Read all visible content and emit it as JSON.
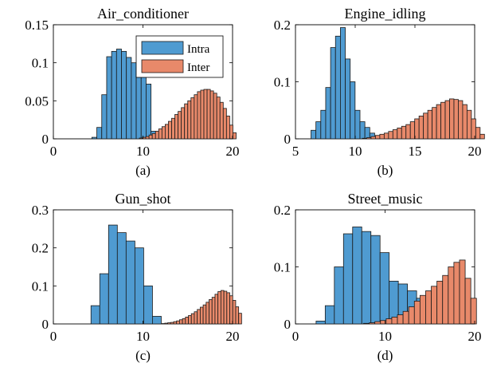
{
  "legend": {
    "entries": [
      "Intra",
      "Inter"
    ],
    "placement": "top-right of panel (a)"
  },
  "colors": {
    "intra": "#4f9bd1",
    "inter": "#e8896a",
    "edge": "#1a1a1a"
  },
  "chart_data": [
    {
      "type": "bar",
      "title": "Air_conditioner",
      "caption": "(a)",
      "xlim": [
        0,
        20
      ],
      "ylim": [
        0,
        0.15
      ],
      "xticks": [
        0,
        10,
        20
      ],
      "yticks": [
        0,
        0.05,
        0.1,
        0.15
      ],
      "xtick_labels": [
        "0",
        "10",
        "20"
      ],
      "ytick_labels": [
        "0",
        "0.05",
        "0.1",
        "0.15"
      ],
      "grid": false,
      "series": [
        {
          "name": "Intra",
          "bin_start": 4.3,
          "bin_width": 0.55,
          "values": [
            0.002,
            0.015,
            0.058,
            0.108,
            0.115,
            0.118,
            0.115,
            0.107,
            0.1,
            0.094,
            0.094,
            0.072,
            0.01
          ]
        },
        {
          "name": "Inter",
          "bin_start": 9.6,
          "bin_width": 0.36,
          "values": [
            0.001,
            0.002,
            0.003,
            0.005,
            0.007,
            0.01,
            0.013,
            0.016,
            0.019,
            0.023,
            0.027,
            0.032,
            0.036,
            0.041,
            0.046,
            0.05,
            0.054,
            0.058,
            0.062,
            0.064,
            0.065,
            0.065,
            0.063,
            0.06,
            0.055,
            0.048,
            0.04,
            0.03,
            0.018,
            0.008
          ]
        }
      ]
    },
    {
      "type": "bar",
      "title": "Engine_idling",
      "caption": "(b)",
      "xlim": [
        5,
        20
      ],
      "ylim": [
        0,
        0.2
      ],
      "xticks": [
        5,
        10,
        15,
        20
      ],
      "yticks": [
        0,
        0.1,
        0.2
      ],
      "xtick_labels": [
        "5",
        "10",
        "15",
        "20"
      ],
      "ytick_labels": [
        "0",
        "0.1",
        "0.2"
      ],
      "grid": false,
      "series": [
        {
          "name": "Intra",
          "bin_start": 6.3,
          "bin_width": 0.41,
          "values": [
            0.015,
            0.03,
            0.05,
            0.09,
            0.16,
            0.18,
            0.195,
            0.14,
            0.1,
            0.05,
            0.03,
            0.02,
            0.01
          ]
        },
        {
          "name": "Inter",
          "bin_start": 10.6,
          "bin_width": 0.365,
          "values": [
            0.001,
            0.002,
            0.004,
            0.006,
            0.008,
            0.01,
            0.013,
            0.016,
            0.019,
            0.022,
            0.025,
            0.03,
            0.035,
            0.04,
            0.045,
            0.05,
            0.055,
            0.06,
            0.064,
            0.067,
            0.07,
            0.069,
            0.067,
            0.06,
            0.05,
            0.035,
            0.02,
            0.008
          ]
        }
      ]
    },
    {
      "type": "bar",
      "title": "Gun_shot",
      "caption": "(c)",
      "xlim": [
        0,
        20
      ],
      "ylim": [
        0,
        0.3
      ],
      "xticks": [
        0,
        10,
        20
      ],
      "yticks": [
        0,
        0.1,
        0.2,
        0.3
      ],
      "xtick_labels": [
        "0",
        "10",
        "20"
      ],
      "ytick_labels": [
        "0",
        "0.1",
        "0.2",
        "0.3"
      ],
      "grid": false,
      "series": [
        {
          "name": "Intra",
          "bin_start": 4.2,
          "bin_width": 0.98,
          "values": [
            0.048,
            0.132,
            0.26,
            0.24,
            0.218,
            0.2,
            0.1,
            0.02
          ]
        },
        {
          "name": "Inter",
          "bin_start": 12.1,
          "bin_width": 0.33,
          "values": [
            0.001,
            0.002,
            0.003,
            0.004,
            0.006,
            0.008,
            0.011,
            0.014,
            0.018,
            0.022,
            0.027,
            0.032,
            0.038,
            0.044,
            0.05,
            0.057,
            0.064,
            0.07,
            0.078,
            0.085,
            0.088,
            0.086,
            0.082,
            0.074,
            0.062,
            0.045,
            0.028
          ]
        }
      ]
    },
    {
      "type": "bar",
      "title": "Street_music",
      "caption": "(d)",
      "xlim": [
        0,
        20
      ],
      "ylim": [
        0,
        0.2
      ],
      "xticks": [
        0,
        10,
        20
      ],
      "yticks": [
        0,
        0.1,
        0.2
      ],
      "xtick_labels": [
        "0",
        "10",
        "20"
      ],
      "ytick_labels": [
        "0",
        "0.1",
        "0.2"
      ],
      "grid": false,
      "series": [
        {
          "name": "Intra",
          "bin_start": 2.3,
          "bin_width": 1.02,
          "values": [
            0.005,
            0.032,
            0.1,
            0.158,
            0.17,
            0.162,
            0.155,
            0.125,
            0.075,
            0.07,
            0.058,
            0.045,
            0.012
          ]
        },
        {
          "name": "Inter",
          "bin_start": 7.6,
          "bin_width": 0.63,
          "values": [
            0.001,
            0.002,
            0.004,
            0.006,
            0.009,
            0.012,
            0.016,
            0.022,
            0.03,
            0.04,
            0.05,
            0.058,
            0.066,
            0.075,
            0.085,
            0.1,
            0.108,
            0.112,
            0.08,
            0.045
          ]
        }
      ]
    }
  ]
}
